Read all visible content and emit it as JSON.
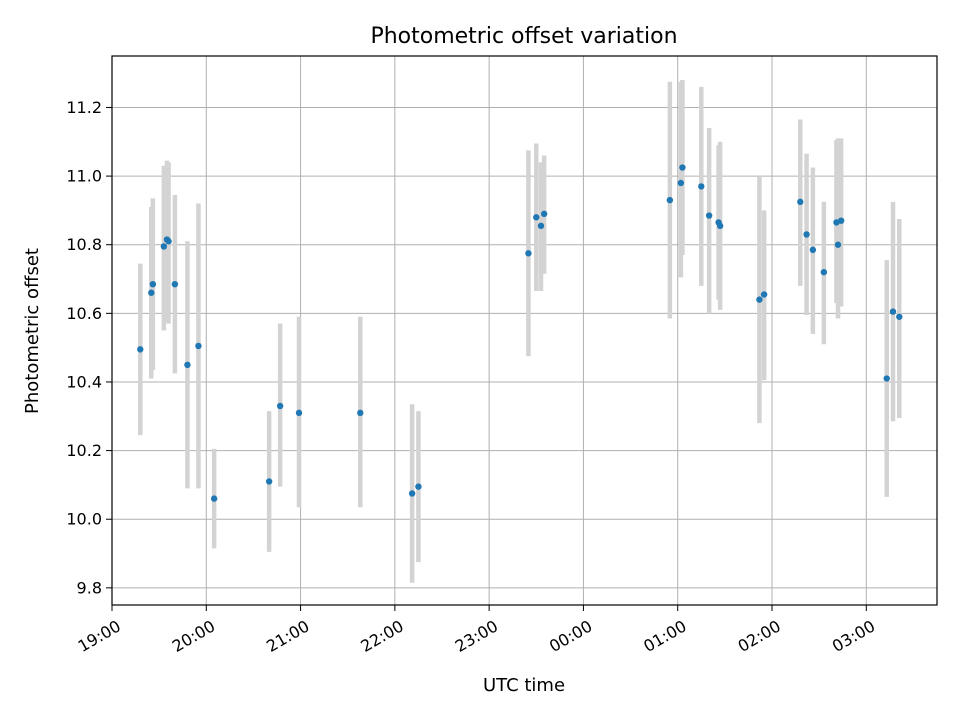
{
  "chart_data": {
    "type": "scatter",
    "title": "Photometric offset variation",
    "xlabel": "UTC time",
    "ylabel": "Photometric offset",
    "x_ticks": [
      "19:00",
      "20:00",
      "21:00",
      "22:00",
      "23:00",
      "00:00",
      "01:00",
      "02:00",
      "03:00"
    ],
    "y_ticks": [
      "9.8",
      "10.0",
      "10.2",
      "10.4",
      "10.6",
      "10.8",
      "11.0",
      "11.2"
    ],
    "xlim": [
      "19:00",
      "03:45"
    ],
    "ylim": [
      9.75,
      11.35
    ],
    "grid": true,
    "colors": {
      "points": "#1f77b4",
      "error_bars": "#d3d3d3",
      "grid": "#b0b0b0"
    },
    "points": [
      {
        "x": "19:18",
        "y": 10.495,
        "low": 10.245,
        "high": 10.745
      },
      {
        "x": "19:25",
        "y": 10.66,
        "low": 10.41,
        "high": 10.91
      },
      {
        "x": "19:26",
        "y": 10.685,
        "low": 10.435,
        "high": 10.935
      },
      {
        "x": "19:33",
        "y": 10.795,
        "low": 10.55,
        "high": 11.03
      },
      {
        "x": "19:35",
        "y": 10.815,
        "low": 10.575,
        "high": 11.045
      },
      {
        "x": "19:36",
        "y": 10.81,
        "low": 10.57,
        "high": 11.04
      },
      {
        "x": "19:40",
        "y": 10.685,
        "low": 10.425,
        "high": 10.945
      },
      {
        "x": "19:48",
        "y": 10.45,
        "low": 10.09,
        "high": 10.81
      },
      {
        "x": "19:55",
        "y": 10.505,
        "low": 10.09,
        "high": 10.92
      },
      {
        "x": "20:05",
        "y": 10.06,
        "low": 9.915,
        "high": 10.205
      },
      {
        "x": "20:40",
        "y": 10.11,
        "low": 9.905,
        "high": 10.315
      },
      {
        "x": "20:47",
        "y": 10.33,
        "low": 10.095,
        "high": 10.57
      },
      {
        "x": "20:59",
        "y": 10.31,
        "low": 10.035,
        "high": 10.59
      },
      {
        "x": "21:38",
        "y": 10.31,
        "low": 10.035,
        "high": 10.59
      },
      {
        "x": "22:11",
        "y": 10.075,
        "low": 9.815,
        "high": 10.335
      },
      {
        "x": "22:15",
        "y": 10.095,
        "low": 9.875,
        "high": 10.315
      },
      {
        "x": "23:25",
        "y": 10.775,
        "low": 10.475,
        "high": 11.075
      },
      {
        "x": "23:30",
        "y": 10.88,
        "low": 10.665,
        "high": 11.095
      },
      {
        "x": "23:33",
        "y": 10.855,
        "low": 10.665,
        "high": 11.04
      },
      {
        "x": "23:35",
        "y": 10.89,
        "low": 10.715,
        "high": 11.06
      },
      {
        "x": "00:55",
        "y": 10.93,
        "low": 10.585,
        "high": 11.275
      },
      {
        "x": "01:02",
        "y": 10.98,
        "low": 10.705,
        "high": 11.275
      },
      {
        "x": "01:03",
        "y": 11.025,
        "low": 10.77,
        "high": 11.28
      },
      {
        "x": "01:15",
        "y": 10.97,
        "low": 10.68,
        "high": 11.26
      },
      {
        "x": "01:20",
        "y": 10.885,
        "low": 10.6,
        "high": 11.14
      },
      {
        "x": "01:26",
        "y": 10.865,
        "low": 10.64,
        "high": 11.09
      },
      {
        "x": "01:27",
        "y": 10.855,
        "low": 10.61,
        "high": 11.1
      },
      {
        "x": "01:52",
        "y": 10.64,
        "low": 10.28,
        "high": 11.0
      },
      {
        "x": "01:55",
        "y": 10.655,
        "low": 10.405,
        "high": 10.9
      },
      {
        "x": "02:18",
        "y": 10.925,
        "low": 10.68,
        "high": 11.165
      },
      {
        "x": "02:22",
        "y": 10.83,
        "low": 10.595,
        "high": 11.065
      },
      {
        "x": "02:26",
        "y": 10.785,
        "low": 10.54,
        "high": 11.025
      },
      {
        "x": "02:33",
        "y": 10.72,
        "low": 10.51,
        "high": 10.925
      },
      {
        "x": "02:41",
        "y": 10.865,
        "low": 10.63,
        "high": 11.105
      },
      {
        "x": "02:42",
        "y": 10.8,
        "low": 10.585,
        "high": 11.11
      },
      {
        "x": "02:44",
        "y": 10.87,
        "low": 10.62,
        "high": 11.11
      },
      {
        "x": "03:13",
        "y": 10.41,
        "low": 10.065,
        "high": 10.755
      },
      {
        "x": "03:17",
        "y": 10.605,
        "low": 10.285,
        "high": 10.925
      },
      {
        "x": "03:21",
        "y": 10.59,
        "low": 10.295,
        "high": 10.875
      }
    ]
  }
}
